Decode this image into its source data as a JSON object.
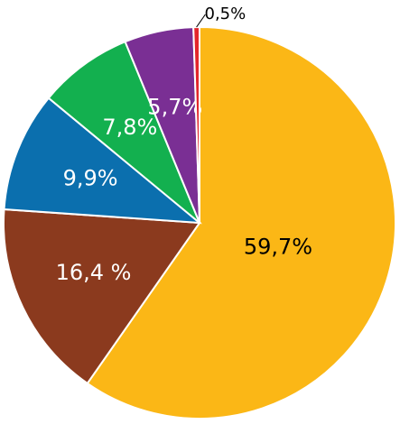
{
  "chart_data": {
    "type": "pie",
    "values": [
      59.7,
      16.4,
      9.9,
      7.8,
      5.7,
      0.5
    ],
    "value_labels": [
      "59,7%",
      "16,4 %",
      "9,9%",
      "7,8%",
      "5,7%",
      "0,5%"
    ],
    "colors": [
      "#fbb716",
      "#8b3a1e",
      "#0b6fae",
      "#13b04f",
      "#7a2f94",
      "#e3262b"
    ]
  }
}
